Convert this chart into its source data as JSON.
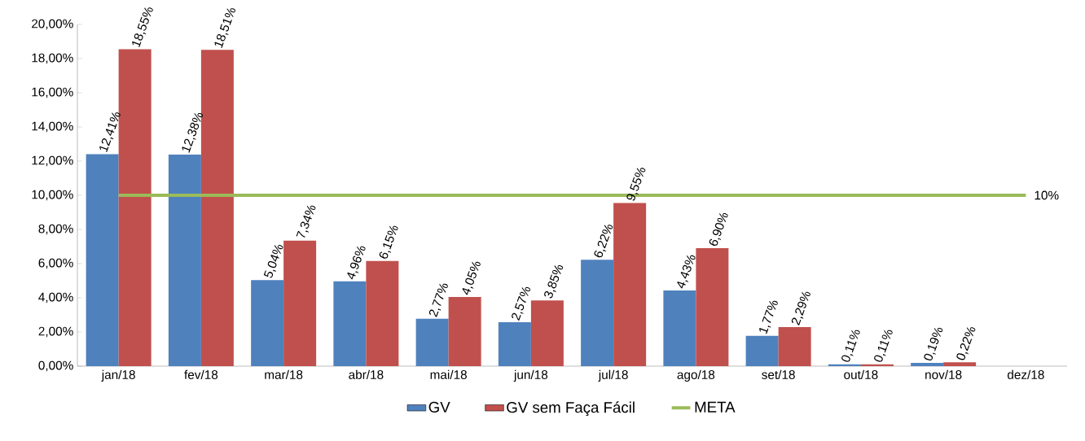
{
  "chart_data": {
    "type": "bar",
    "categories": [
      "jan/18",
      "fev/18",
      "mar/18",
      "abr/18",
      "mai/18",
      "jun/18",
      "jul/18",
      "ago/18",
      "set/18",
      "out/18",
      "nov/18",
      "dez/18"
    ],
    "series": [
      {
        "name": "GV",
        "color": "#4f81bd",
        "values": [
          12.41,
          12.38,
          5.04,
          4.96,
          2.77,
          2.57,
          6.22,
          4.43,
          1.77,
          0.11,
          0.19,
          null
        ],
        "value_labels": [
          "12,41%",
          "12,38%",
          "5,04%",
          "4,96%",
          "2,77%",
          "2,57%",
          "6,22%",
          "4,43%",
          "1,77%",
          "0,11%",
          "0,19%",
          null
        ]
      },
      {
        "name": "GV sem Faça Fácil",
        "color": "#c0504d",
        "values": [
          18.55,
          18.51,
          7.34,
          6.15,
          4.05,
          3.85,
          9.55,
          6.9,
          2.29,
          0.11,
          0.22,
          null
        ],
        "value_labels": [
          "18,55%",
          "18,51%",
          "7,34%",
          "6,15%",
          "4,05%",
          "3,85%",
          "9,55%",
          "6,90%",
          "2,29%",
          "0,11%",
          "0,22%",
          null
        ]
      },
      {
        "name": "META",
        "type": "line",
        "color": "#9bbb59",
        "values": [
          10,
          10,
          10,
          10,
          10,
          10,
          10,
          10,
          10,
          10,
          10,
          10
        ],
        "value_labels": [
          null,
          null,
          null,
          null,
          null,
          null,
          null,
          null,
          null,
          null,
          null,
          "10%"
        ]
      }
    ],
    "ylim": [
      0,
      20
    ],
    "yticks": [
      {
        "value": 0,
        "label": "0,00%"
      },
      {
        "value": 2,
        "label": "2,00%"
      },
      {
        "value": 4,
        "label": "4,00%"
      },
      {
        "value": 6,
        "label": "6,00%"
      },
      {
        "value": 8,
        "label": "8,00%"
      },
      {
        "value": 10,
        "label": "10,00%"
      },
      {
        "value": 12,
        "label": "12,00%"
      },
      {
        "value": 14,
        "label": "14,00%"
      },
      {
        "value": 16,
        "label": "16,00%"
      },
      {
        "value": 18,
        "label": "18,00%"
      },
      {
        "value": 20,
        "label": "20,00%"
      }
    ],
    "grid": false,
    "legend": "bottom"
  }
}
